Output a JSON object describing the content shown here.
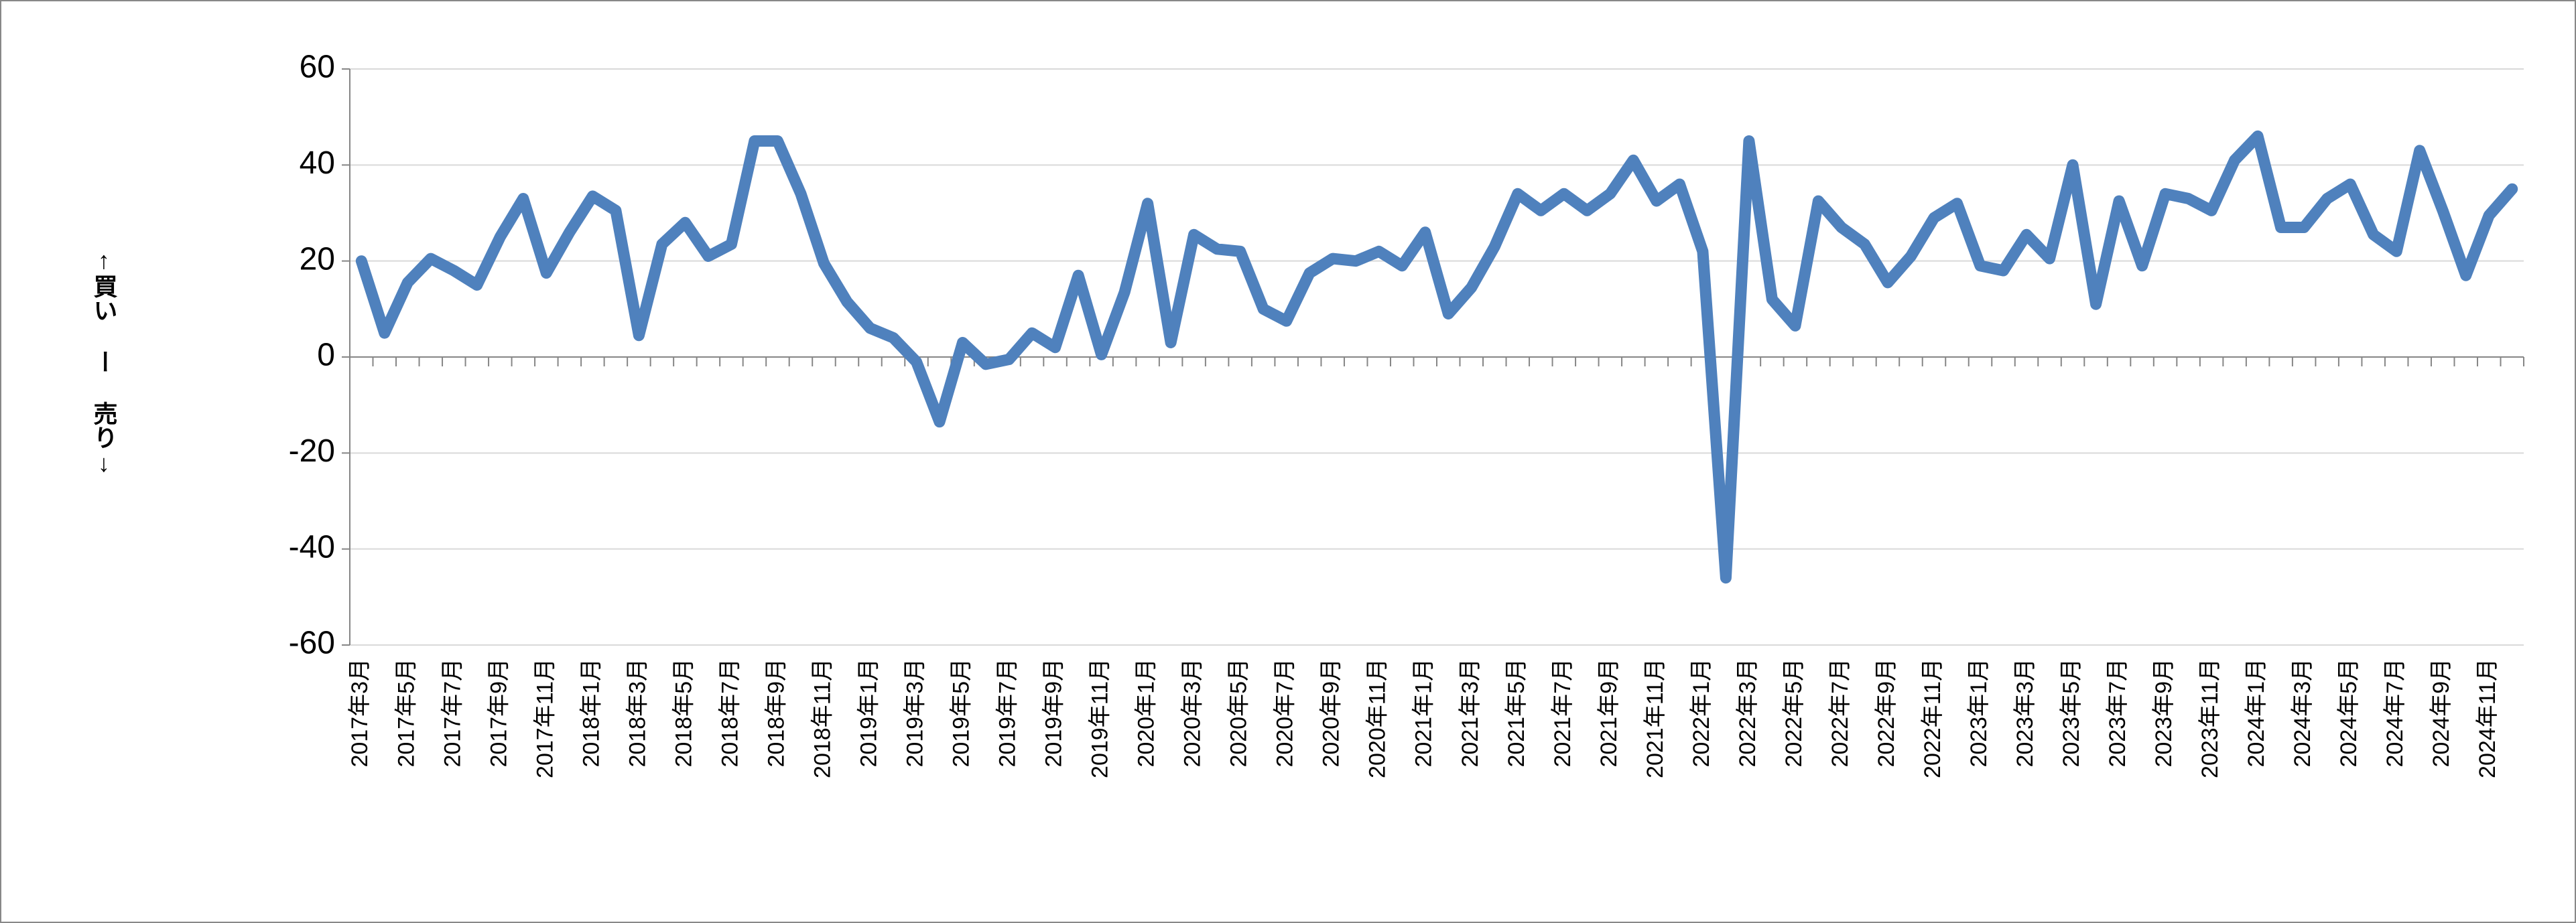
{
  "chart_data": {
    "type": "line",
    "y_label": "↑買い ー 売り↓",
    "categories": [
      "2017年3月",
      null,
      "2017年5月",
      null,
      "2017年7月",
      null,
      "2017年9月",
      null,
      "2017年11月",
      null,
      "2018年1月",
      null,
      "2018年3月",
      null,
      "2018年5月",
      null,
      "2018年7月",
      null,
      "2018年9月",
      null,
      "2018年11月",
      null,
      "2019年1月",
      null,
      "2019年3月",
      null,
      "2019年5月",
      null,
      "2019年7月",
      null,
      "2019年9月",
      null,
      "2019年11月",
      null,
      "2020年1月",
      null,
      "2020年3月",
      null,
      "2020年5月",
      null,
      "2020年7月",
      null,
      "2020年9月",
      null,
      "2020年11月",
      null,
      "2021年1月",
      null,
      "2021年3月",
      null,
      "2021年5月",
      null,
      "2021年7月",
      null,
      "2021年9月",
      null,
      "2021年11月",
      null,
      "2022年1月",
      null,
      "2022年3月",
      null,
      "2022年5月",
      null,
      "2022年7月",
      null,
      "2022年9月",
      null,
      "2022年11月",
      null,
      "2023年1月",
      null,
      "2023年3月",
      null,
      "2023年5月",
      null,
      "2023年7月",
      null,
      "2023年9月",
      null,
      "2023年11月",
      null,
      "2024年1月",
      null,
      "2024年3月",
      null,
      "2024年5月",
      null,
      "2024年7月",
      null,
      "2024年9月",
      null,
      "2024年11月",
      null
    ],
    "series": [
      {
        "color": "#4f81bd",
        "values": [
          20,
          5,
          15.5,
          20.5,
          18,
          15,
          25,
          33,
          17.5,
          26,
          33.5,
          30.5,
          4.5,
          23.5,
          28,
          21,
          23.5,
          45,
          45,
          34,
          19.5,
          11.5,
          6,
          4,
          -1,
          -13.5,
          3,
          -1.5,
          -0.5,
          5,
          2,
          17,
          0.5,
          13.5,
          32,
          3,
          25.5,
          22.5,
          22,
          10,
          7.5,
          17.5,
          20.5,
          20,
          22,
          19,
          26,
          9,
          14.5,
          23,
          34,
          30.5,
          34,
          30.5,
          34,
          41,
          32.5,
          36,
          22,
          -46,
          45,
          12,
          6.5,
          32.5,
          27,
          23.5,
          15.5,
          21,
          29,
          32,
          19,
          18,
          25.5,
          20.5,
          40,
          11,
          32.5,
          19,
          34,
          33,
          30.5,
          41,
          46,
          27,
          27,
          33,
          36,
          25.5,
          22,
          43,
          30.5,
          17,
          29.5,
          35
        ]
      }
    ],
    "ylim": [
      -60,
      60
    ],
    "yticks": [
      -60,
      -40,
      -20,
      0,
      20,
      40,
      60
    ],
    "grid": true
  }
}
